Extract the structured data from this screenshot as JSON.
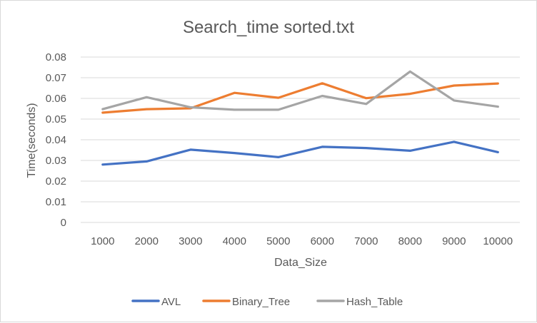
{
  "chart_data": {
    "type": "line",
    "title": "Search_time sorted.txt",
    "xlabel": "Data_Size",
    "ylabel": "Time(seconds)",
    "categories": [
      "1000",
      "2000",
      "3000",
      "4000",
      "5000",
      "6000",
      "7000",
      "8000",
      "9000",
      "10000"
    ],
    "ylim": [
      0,
      0.08
    ],
    "yticks": [
      "0",
      "0.01",
      "0.02",
      "0.03",
      "0.04",
      "0.05",
      "0.06",
      "0.07",
      "0.08"
    ],
    "grid": true,
    "legend_position": "bottom",
    "series": [
      {
        "name": "AVL",
        "color": "#4472c4",
        "values": [
          0.028,
          0.0295,
          0.0352,
          0.0336,
          0.0316,
          0.0366,
          0.036,
          0.0347,
          0.039,
          0.034
        ]
      },
      {
        "name": "Binary_Tree",
        "color": "#ed7d31",
        "values": [
          0.0531,
          0.0548,
          0.0552,
          0.0627,
          0.0603,
          0.0673,
          0.0601,
          0.0622,
          0.0662,
          0.0672
        ]
      },
      {
        "name": "Hash_Table",
        "color": "#a5a5a5",
        "values": [
          0.0548,
          0.0606,
          0.0557,
          0.0545,
          0.0545,
          0.0612,
          0.0573,
          0.073,
          0.059,
          0.056
        ]
      }
    ]
  }
}
